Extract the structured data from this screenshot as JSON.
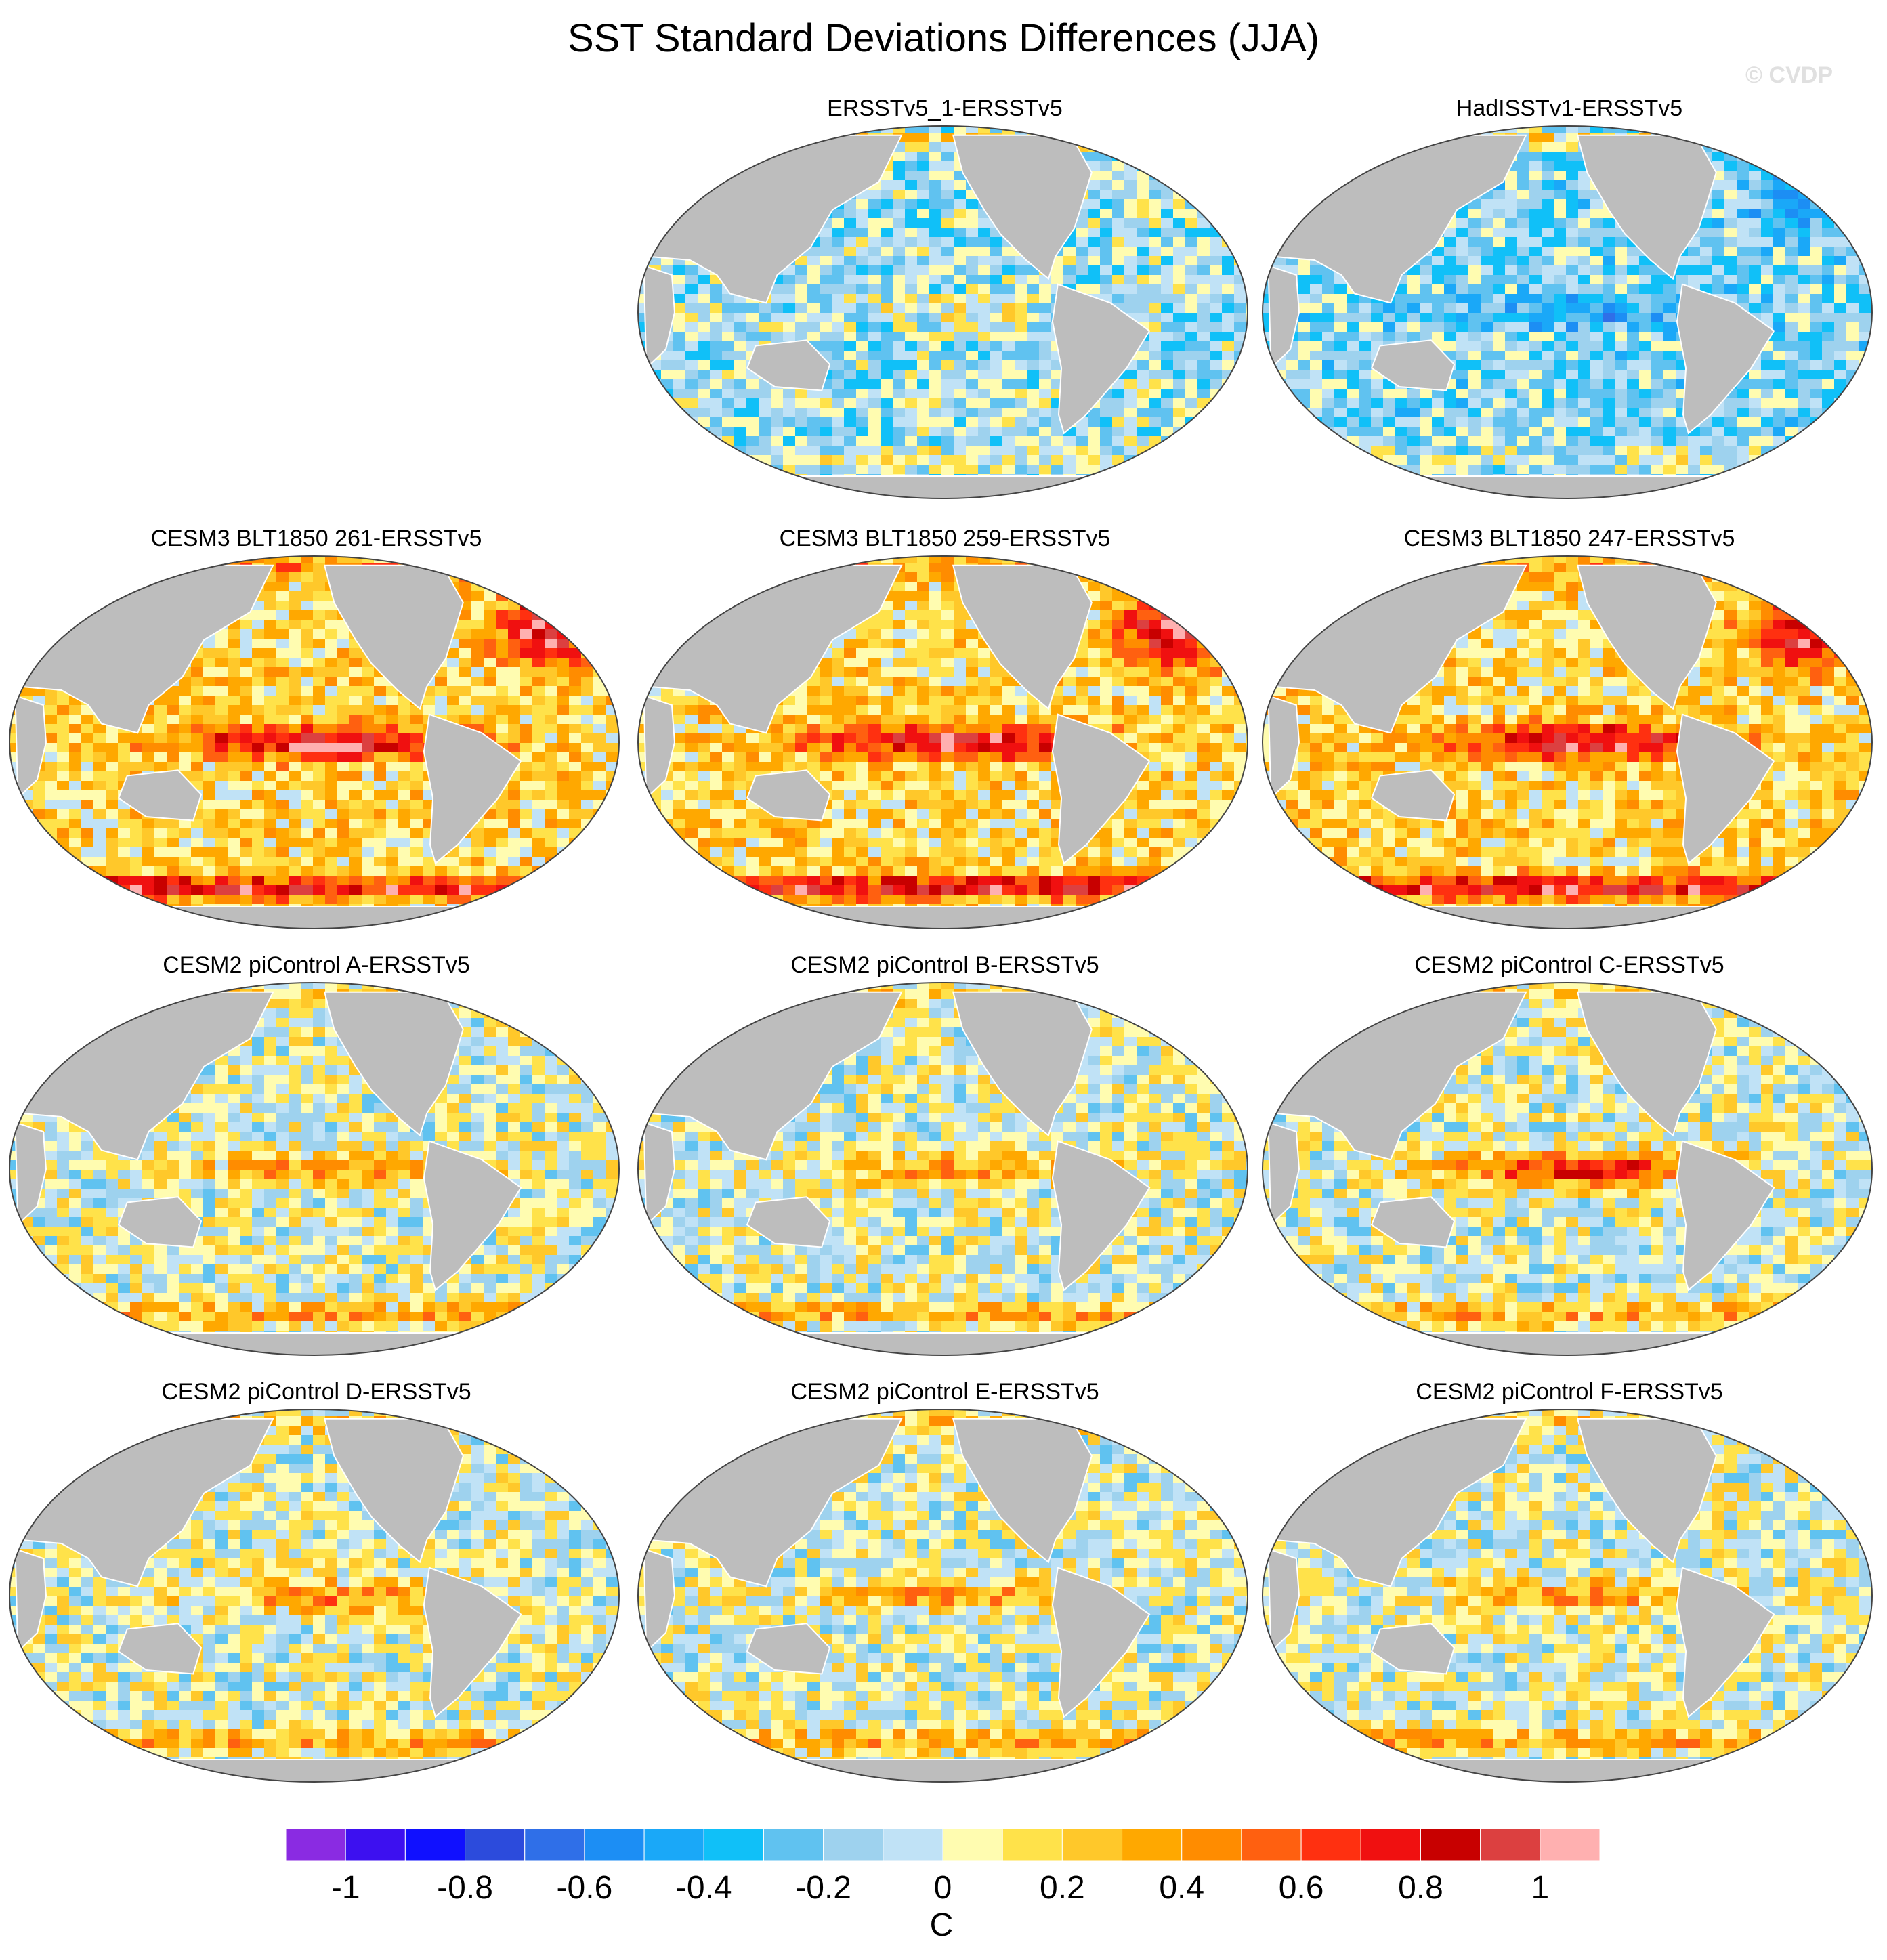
{
  "title": "SST Standard Deviations Differences (JJA)",
  "watermark": "© CVDP",
  "chart_data": {
    "type": "heatmap",
    "title": "SST Standard Deviations Differences (JJA)",
    "projection": "global map, Robinson-like, Pacific-centred",
    "units": "C",
    "panels": [
      {
        "title": "ERSSTv5_1-ERSSTv5",
        "row": 0,
        "col": 1,
        "tropical_pacific": "small positive",
        "north_atlantic": "mixed",
        "southern_ocean": "small positive",
        "general": "weak negative"
      },
      {
        "title": "HadISSTv1-ERSSTv5",
        "row": 0,
        "col": 2,
        "tropical_pacific": "weak negative",
        "north_atlantic": "weak negative",
        "southern_ocean": "small positive",
        "general": "negative"
      },
      {
        "title": "CESM3 BLT1850 261-ERSSTv5",
        "row": 1,
        "col": 0,
        "tropical_pacific": "strong positive",
        "north_atlantic": "strong positive",
        "southern_ocean": "strong positive",
        "general": "positive"
      },
      {
        "title": "CESM3 BLT1850 259-ERSSTv5",
        "row": 1,
        "col": 1,
        "tropical_pacific": "strong positive",
        "north_atlantic": "strong positive",
        "southern_ocean": "strong positive",
        "general": "positive"
      },
      {
        "title": "CESM3 BLT1850 247-ERSSTv5",
        "row": 1,
        "col": 2,
        "tropical_pacific": "strong positive",
        "north_atlantic": "strong positive",
        "southern_ocean": "strong positive",
        "general": "positive"
      },
      {
        "title": "CESM2 piControl A-ERSSTv5",
        "row": 2,
        "col": 0,
        "tropical_pacific": "positive",
        "north_atlantic": "mixed",
        "southern_ocean": "positive",
        "general": "mixed"
      },
      {
        "title": "CESM2 piControl B-ERSSTv5",
        "row": 2,
        "col": 1,
        "tropical_pacific": "positive",
        "north_atlantic": "mixed",
        "southern_ocean": "positive",
        "general": "mixed"
      },
      {
        "title": "CESM2 piControl C-ERSSTv5",
        "row": 2,
        "col": 2,
        "tropical_pacific": "strong positive",
        "north_atlantic": "mixed",
        "southern_ocean": "positive",
        "general": "mixed"
      },
      {
        "title": "CESM2 piControl D-ERSSTv5",
        "row": 3,
        "col": 0,
        "tropical_pacific": "positive",
        "north_atlantic": "mixed",
        "southern_ocean": "positive",
        "general": "mixed"
      },
      {
        "title": "CESM2 piControl E-ERSSTv5",
        "row": 3,
        "col": 1,
        "tropical_pacific": "positive",
        "north_atlantic": "mixed",
        "southern_ocean": "positive",
        "general": "mixed"
      },
      {
        "title": "CESM2 piControl F-ERSSTv5",
        "row": 3,
        "col": 2,
        "tropical_pacific": "positive",
        "north_atlantic": "mixed",
        "southern_ocean": "positive",
        "general": "mixed"
      }
    ],
    "colorbar": {
      "levels": [
        -1.1,
        -1.0,
        -0.9,
        -0.8,
        -0.7,
        -0.6,
        -0.5,
        -0.4,
        -0.3,
        -0.2,
        -0.1,
        0,
        0.1,
        0.2,
        0.3,
        0.4,
        0.5,
        0.6,
        0.7,
        0.8,
        0.9,
        1.0,
        1.1
      ],
      "tick_labels": [
        "-1",
        "-0.8",
        "-0.6",
        "-0.4",
        "-0.2",
        "0",
        "0.2",
        "0.4",
        "0.6",
        "0.8",
        "1"
      ],
      "tick_values": [
        -1,
        -0.8,
        -0.6,
        -0.4,
        -0.2,
        0,
        0.2,
        0.4,
        0.6,
        0.8,
        1
      ],
      "colors": [
        "#8a2be2",
        "#3d10f0",
        "#1010ff",
        "#2c4bdc",
        "#2f6fe8",
        "#1c8ef4",
        "#1aa8f8",
        "#10c0f8",
        "#60c2f0",
        "#9ed2ee",
        "#c0e2f6",
        "#fffcb0",
        "#ffe24a",
        "#ffc82a",
        "#ffa800",
        "#ff8c00",
        "#ff6010",
        "#ff3010",
        "#f01010",
        "#c80000",
        "#dc4040",
        "#ffb0b0"
      ],
      "label": "C"
    }
  }
}
